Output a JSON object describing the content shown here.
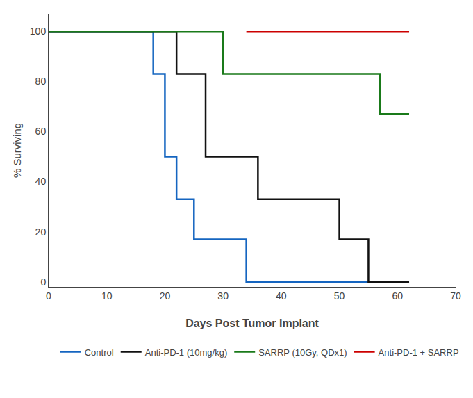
{
  "chart_data": {
    "type": "line",
    "xlabel": "Days Post Tumor Implant",
    "ylabel": "% Surviving",
    "xlim": [
      0,
      70
    ],
    "ylim": [
      -2,
      107
    ],
    "xticks": [
      0,
      10,
      20,
      30,
      40,
      50,
      60,
      70
    ],
    "yticks": [
      0,
      20,
      40,
      60,
      80,
      100
    ],
    "grid": false,
    "legend": "bottom",
    "series": [
      {
        "name": "Control",
        "color": "#1565C0",
        "x": [
          0,
          18,
          18,
          20,
          20,
          22,
          22,
          25,
          25,
          34,
          34,
          62
        ],
        "values": [
          100,
          100,
          83,
          83,
          50,
          50,
          33,
          33,
          17,
          17,
          0,
          0
        ]
      },
      {
        "name": "Anti-PD-1 (10mg/kg)",
        "color": "#111111",
        "x": [
          0,
          22,
          22,
          27,
          27,
          36,
          36,
          41,
          41,
          50,
          50,
          55,
          55,
          62
        ],
        "values": [
          100,
          100,
          83,
          83,
          50,
          50,
          33,
          33,
          33,
          33,
          17,
          17,
          0,
          0
        ]
      },
      {
        "name": "SARRP (10Gy, QDx1)",
        "color": "#1a7a1a",
        "x": [
          0,
          30,
          30,
          57,
          57,
          62
        ],
        "values": [
          100,
          100,
          83,
          83,
          67,
          67
        ]
      },
      {
        "name": "Anti-PD-1 + SARRP",
        "color": "#cc0000",
        "x": [
          34,
          62
        ],
        "values": [
          100,
          100
        ]
      }
    ]
  }
}
